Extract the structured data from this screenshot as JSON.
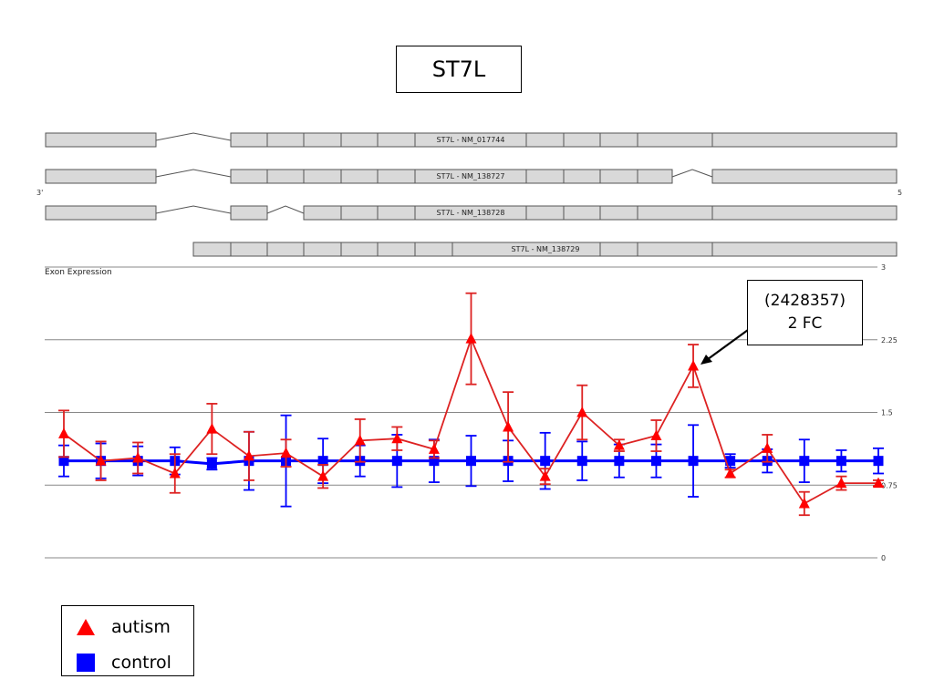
{
  "title": "ST7L",
  "gene_model": {
    "left_end_label": "3'",
    "right_end_label": "5",
    "transcripts": [
      "ST7L - NM_017744",
      "ST7L - NM_138727",
      "ST7L - NM_138728",
      "ST7L - NM_138729"
    ]
  },
  "callout": {
    "line1": "(2428357)",
    "line2": "2 FC"
  },
  "legend": {
    "autism_label": "autism",
    "control_label": "control"
  },
  "colors": {
    "autism": "#ff0000",
    "autism_line": "#dd2222",
    "control": "#0000ff",
    "exon_fill": "#d9d9d9",
    "grid": "#888888"
  },
  "chart_data": {
    "type": "line",
    "title": "",
    "panel_label": "Exon Expression",
    "xlabel": "",
    "ylabel": "",
    "ylim": [
      0,
      3
    ],
    "yticks": [
      "0",
      "0.75",
      "1.5",
      "2.25",
      "3"
    ],
    "grid": true,
    "legend_position": "bottom-left",
    "x": [
      1,
      2,
      3,
      4,
      5,
      6,
      7,
      8,
      9,
      10,
      11,
      12,
      13,
      14,
      15,
      16,
      17,
      18,
      19,
      20,
      21,
      22,
      23
    ],
    "series": [
      {
        "name": "autism",
        "marker": "triangle",
        "values": [
          1.28,
          1.0,
          1.03,
          0.87,
          1.33,
          1.05,
          1.08,
          0.84,
          1.21,
          1.23,
          1.12,
          2.26,
          1.35,
          0.84,
          1.5,
          1.16,
          1.26,
          1.98,
          0.87,
          1.13,
          0.56,
          0.77,
          0.77
        ],
        "error": [
          0.24,
          0.2,
          0.16,
          0.2,
          0.26,
          0.25,
          0.14,
          0.12,
          0.22,
          0.12,
          0.09,
          0.47,
          0.36,
          0.08,
          0.28,
          0.06,
          0.16,
          0.22,
          0.04,
          0.14,
          0.12,
          0.07,
          0.03
        ]
      },
      {
        "name": "control",
        "marker": "square",
        "values": [
          1.0,
          1.0,
          1.0,
          1.0,
          0.97,
          1.0,
          1.0,
          1.0,
          1.0,
          1.0,
          1.0,
          1.0,
          1.0,
          1.0,
          1.0,
          1.0,
          1.0,
          1.0,
          1.0,
          1.0,
          1.0,
          1.0,
          1.0
        ],
        "error": [
          0.16,
          0.18,
          0.15,
          0.14,
          0.06,
          0.3,
          0.47,
          0.23,
          0.16,
          0.27,
          0.22,
          0.26,
          0.21,
          0.29,
          0.2,
          0.17,
          0.17,
          0.37,
          0.07,
          0.12,
          0.22,
          0.11,
          0.13
        ]
      }
    ]
  }
}
